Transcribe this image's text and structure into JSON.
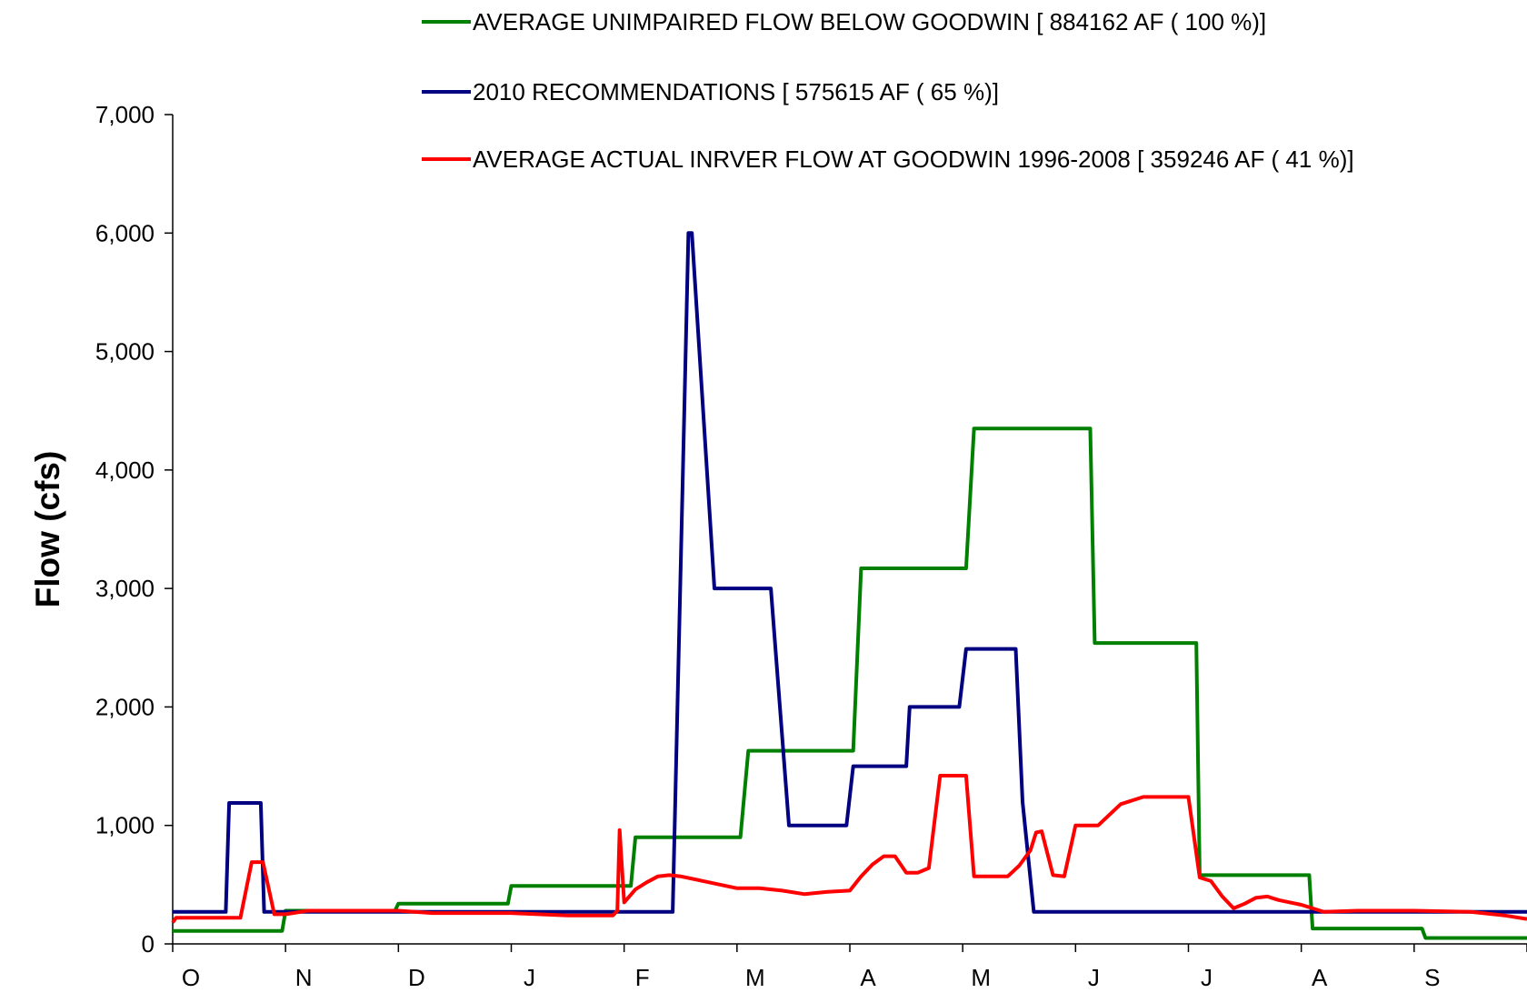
{
  "chart_data": {
    "type": "line",
    "title": "",
    "xlabel": "",
    "ylabel": "Flow (cfs)",
    "ylim": [
      0,
      7000
    ],
    "yticks": [
      0,
      1000,
      2000,
      3000,
      4000,
      5000,
      6000,
      7000
    ],
    "ytick_labels": [
      "0",
      "1,000",
      "2,000",
      "3,000",
      "4,000",
      "5,000",
      "6,000",
      "7,000"
    ],
    "xlim": [
      0,
      12
    ],
    "month_labels": [
      "O",
      "N",
      "D",
      "J",
      "F",
      "M",
      "A",
      "M",
      "J",
      "J",
      "A",
      "S"
    ],
    "legend_position": "top",
    "grid": false,
    "series": [
      {
        "name": "AVERAGE UNIMPAIRED FLOW BELOW GOODWIN [ 884162 AF ( 100 %)]",
        "color": "#008000",
        "x": [
          0,
          0.97,
          1.0,
          1.97,
          2.0,
          2.97,
          3.0,
          3.97,
          4.0,
          4.06,
          4.1,
          4.97,
          5.03,
          5.1,
          5.97,
          6.03,
          6.1,
          6.97,
          7.03,
          7.1,
          8.1,
          8.13,
          8.17,
          9.03,
          9.07,
          9.1,
          10.03,
          10.07,
          10.1,
          11.03,
          11.07,
          11.1,
          12.0
        ],
        "y": [
          110,
          110,
          280,
          280,
          340,
          340,
          490,
          490,
          490,
          490,
          900,
          900,
          900,
          1630,
          1630,
          1630,
          3170,
          3170,
          3170,
          4350,
          4350,
          4350,
          2540,
          2540,
          2540,
          580,
          580,
          580,
          130,
          130,
          130,
          50,
          50
        ]
      },
      {
        "name": "2010 RECOMMENDATIONS [ 575615 AF ( 65 %)]",
        "color": "#000080",
        "x": [
          0,
          0.47,
          0.5,
          0.78,
          0.81,
          4.43,
          4.57,
          4.6,
          4.8,
          5.3,
          5.46,
          5.6,
          5.97,
          6.03,
          6.5,
          6.53,
          6.97,
          7.03,
          7.47,
          7.53,
          7.63,
          7.67,
          12.0
        ],
        "y": [
          270,
          270,
          1190,
          1190,
          270,
          270,
          6000,
          6000,
          3000,
          3000,
          1000,
          1000,
          1000,
          1500,
          1500,
          2000,
          2000,
          2490,
          2490,
          1200,
          270,
          270,
          270
        ]
      },
      {
        "name": "AVERAGE ACTUAL INRVER FLOW AT GOODWIN 1996-2008 [ 359246 AF ( 41 %)]",
        "color": "#ff0000",
        "x": [
          0,
          0.03,
          0.6,
          0.7,
          0.8,
          0.9,
          1.0,
          1.2,
          1.5,
          2.0,
          2.3,
          2.6,
          3.0,
          3.5,
          3.9,
          3.94,
          3.96,
          4.0,
          4.1,
          4.2,
          4.3,
          4.4,
          4.5,
          4.7,
          4.9,
          5.0,
          5.2,
          5.4,
          5.6,
          5.8,
          6.0,
          6.1,
          6.2,
          6.3,
          6.4,
          6.5,
          6.6,
          6.7,
          6.8,
          6.9,
          6.97,
          7.03,
          7.1,
          7.2,
          7.4,
          7.5,
          7.6,
          7.65,
          7.7,
          7.8,
          7.9,
          8.0,
          8.2,
          8.4,
          8.6,
          8.7,
          8.8,
          8.9,
          9.0,
          9.1,
          9.2,
          9.3,
          9.4,
          9.5,
          9.6,
          9.7,
          9.8,
          9.9,
          10.0,
          10.1,
          10.2,
          10.5,
          11.0,
          11.5,
          11.8,
          12.0
        ],
        "y": [
          180,
          220,
          220,
          690,
          690,
          250,
          250,
          280,
          280,
          280,
          260,
          260,
          260,
          240,
          240,
          280,
          960,
          350,
          460,
          520,
          570,
          580,
          570,
          530,
          490,
          470,
          470,
          450,
          420,
          440,
          450,
          570,
          670,
          740,
          740,
          600,
          600,
          640,
          1420,
          1420,
          1420,
          1420,
          570,
          570,
          570,
          660,
          790,
          940,
          950,
          580,
          570,
          1000,
          1000,
          1180,
          1240,
          1240,
          1240,
          1240,
          1240,
          560,
          530,
          400,
          300,
          340,
          390,
          400,
          370,
          350,
          330,
          300,
          270,
          280,
          280,
          270,
          240,
          210
        ]
      }
    ]
  }
}
